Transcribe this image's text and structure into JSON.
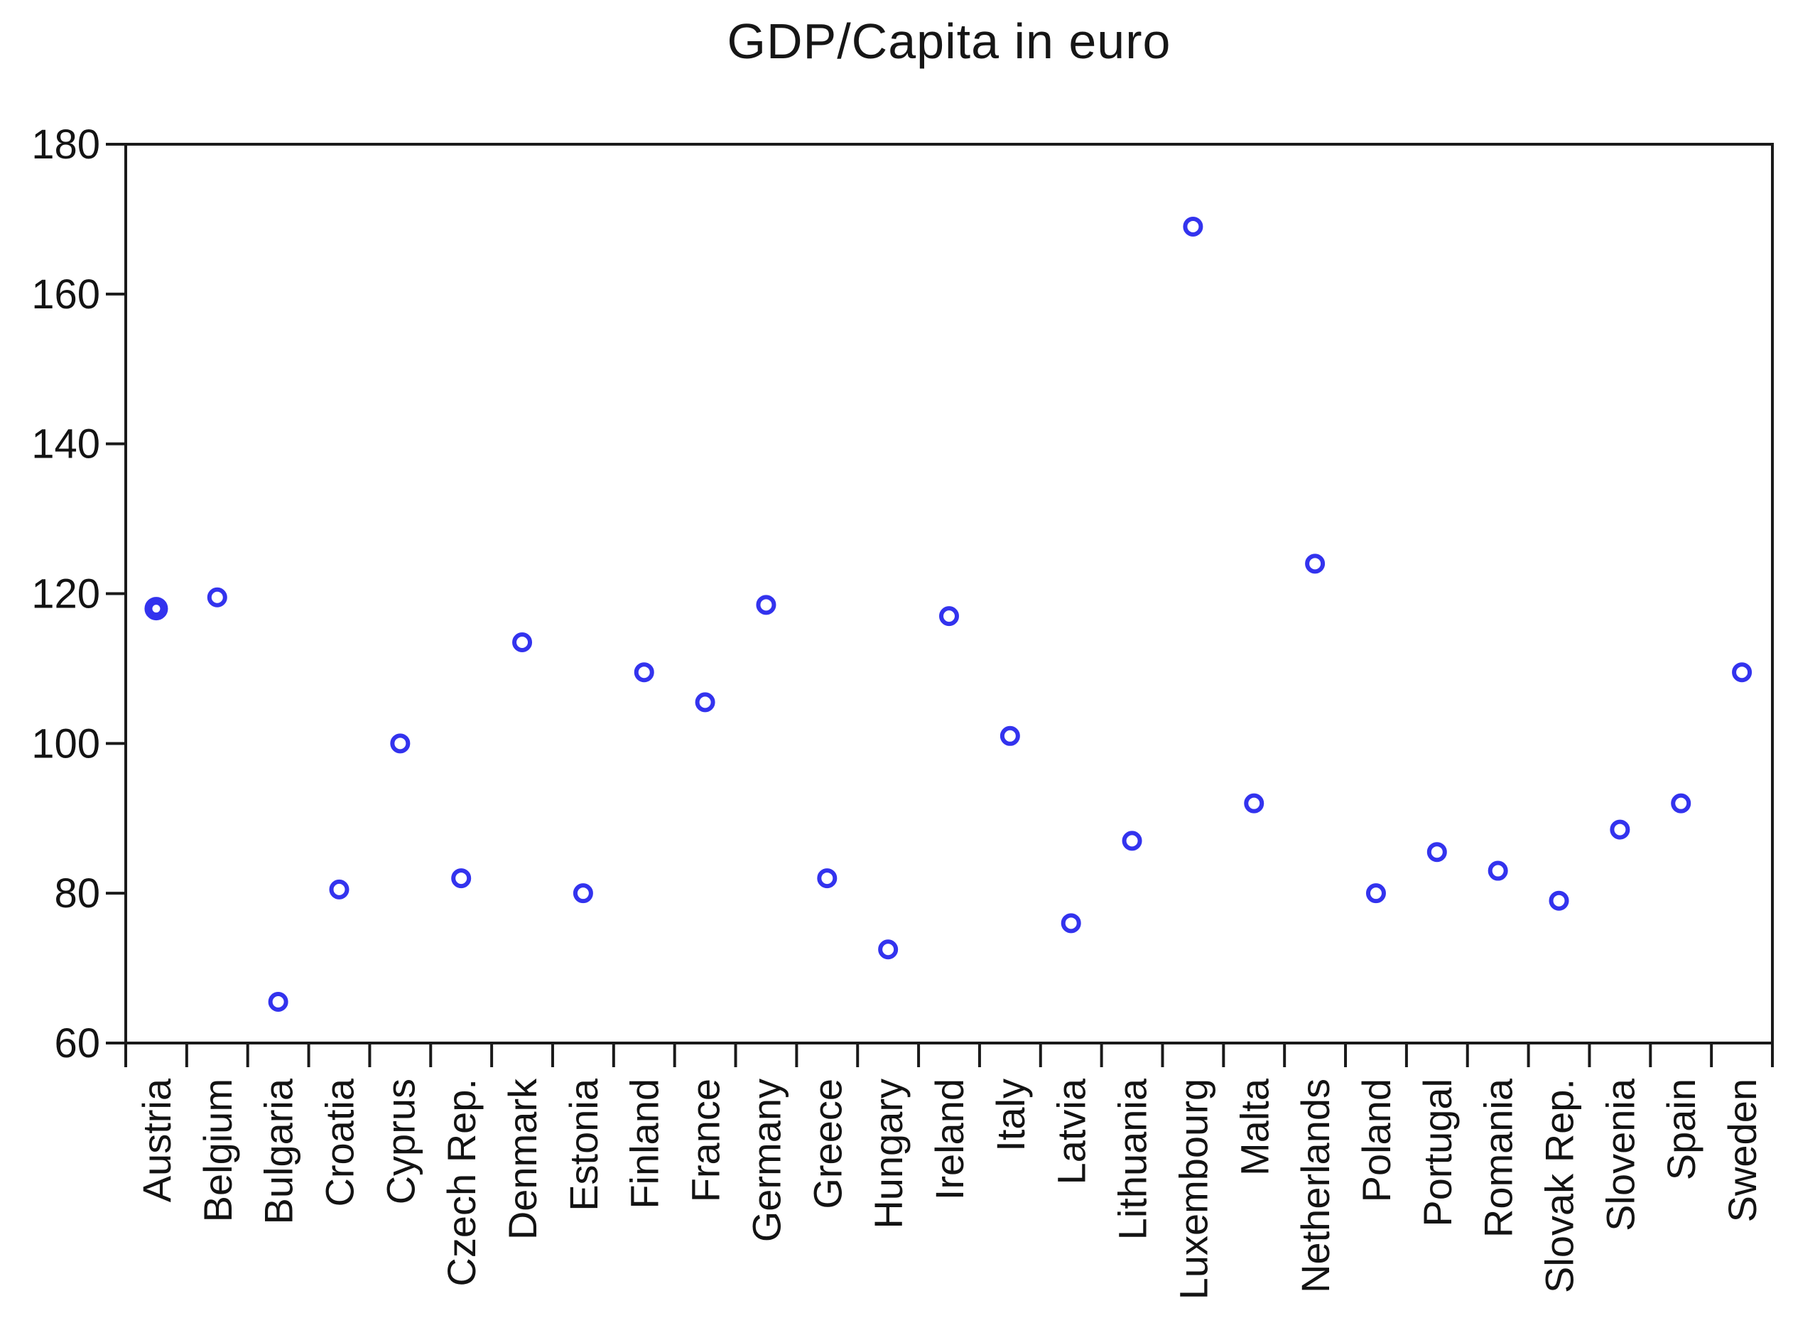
{
  "page_title": "GDP/Capita in euro",
  "chart_data": {
    "type": "scatter",
    "title": "GDP/Capita in euro",
    "categories": [
      "Austria",
      "Belgium",
      "Bulgaria",
      "Croatia",
      "Cyprus",
      "Czech Rep.",
      "Denmark",
      "Estonia",
      "Finland",
      "France",
      "Germany",
      "Greece",
      "Hungary",
      "Ireland",
      "Italy",
      "Latvia",
      "Lithuania",
      "Luxembourg",
      "Malta",
      "Netherlands",
      "Poland",
      "Portugal",
      "Romania",
      "Slovak Rep.",
      "Slovenia",
      "Spain",
      "Sweden"
    ],
    "values": [
      118,
      119.5,
      65.5,
      80.5,
      100,
      82,
      113.5,
      80,
      109.5,
      105.5,
      118.5,
      82,
      72.5,
      117,
      101,
      76,
      87,
      169,
      92,
      124,
      80,
      85.5,
      83,
      79,
      88.5,
      92,
      109.5
    ],
    "xlabel": "",
    "ylabel": "",
    "ylim": [
      60,
      180
    ],
    "yticks": [
      60,
      80,
      100,
      120,
      140,
      160,
      180
    ],
    "grid": false,
    "legend_position": "none",
    "marker": {
      "shape": "open-circle",
      "color": "#3333ee",
      "bold_category": "Austria"
    },
    "axis_color": "#1a1a1a"
  }
}
